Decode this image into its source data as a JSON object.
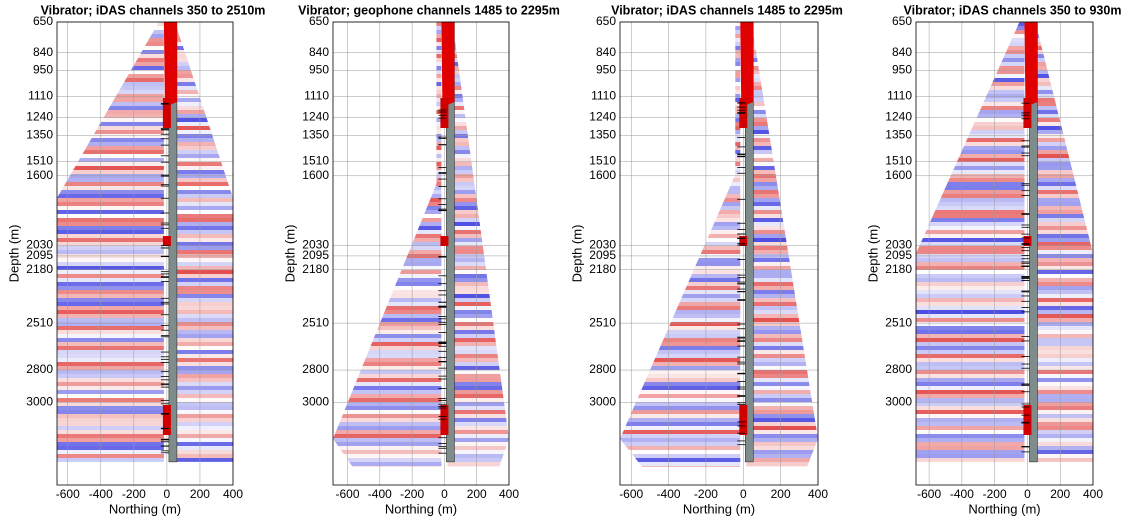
{
  "chart_data": [
    {
      "type": "seismic",
      "title": "Vibrator; iDAS channels 350 to 2510m",
      "x_label": "Northing (m)",
      "y_label": "Depth (m)",
      "xlim": [
        -665,
        400
      ],
      "xticks": [
        -600,
        -400,
        -200,
        0,
        200,
        400
      ],
      "ylim": [
        650,
        3510
      ],
      "yticks": [
        650,
        840,
        950,
        1110,
        1240,
        1350,
        1510,
        1600,
        2030,
        2095,
        2180,
        2510,
        2800,
        3000
      ],
      "y_reversed": true,
      "grid": true
    },
    {
      "type": "seismic",
      "title": "Vibrator; geophone channels  1485 to 2295m",
      "x_label": "Northing (m)",
      "y_label": "Depth (m)",
      "xlim": [
        -690,
        400
      ],
      "xticks": [
        -600,
        -400,
        -200,
        0,
        200,
        400
      ],
      "ylim": [
        650,
        3510
      ],
      "yticks": [
        650,
        840,
        950,
        1110,
        1240,
        1350,
        1510,
        1600,
        2030,
        2095,
        2180,
        2510,
        2800,
        3000
      ],
      "y_reversed": true,
      "grid": true
    },
    {
      "type": "seismic",
      "title": "Vibrator; iDAS channels  1485 to 2295m",
      "x_label": "Northing (m)",
      "y_label": "Depth (m)",
      "xlim": [
        -660,
        400
      ],
      "xticks": [
        -600,
        -400,
        -200,
        0,
        200,
        400
      ],
      "ylim": [
        650,
        3510
      ],
      "yticks": [
        650,
        840,
        950,
        1110,
        1240,
        1350,
        1510,
        1600,
        2030,
        2095,
        2180,
        2510,
        2800,
        3000
      ],
      "y_reversed": true,
      "grid": true
    },
    {
      "type": "seismic",
      "title": "Vibrator; iDAS channels 350 to 930m",
      "x_label": "Northing (m)",
      "y_label": "Depth (m)",
      "xlim": [
        -680,
        400
      ],
      "xticks": [
        -600,
        -400,
        -200,
        0,
        200,
        400
      ],
      "ylim": [
        650,
        3510
      ],
      "yticks": [
        650,
        840,
        950,
        1110,
        1240,
        1350,
        1510,
        1600,
        2030,
        2095,
        2180,
        2510,
        2800,
        3000
      ],
      "y_reversed": true,
      "grid": true
    }
  ]
}
